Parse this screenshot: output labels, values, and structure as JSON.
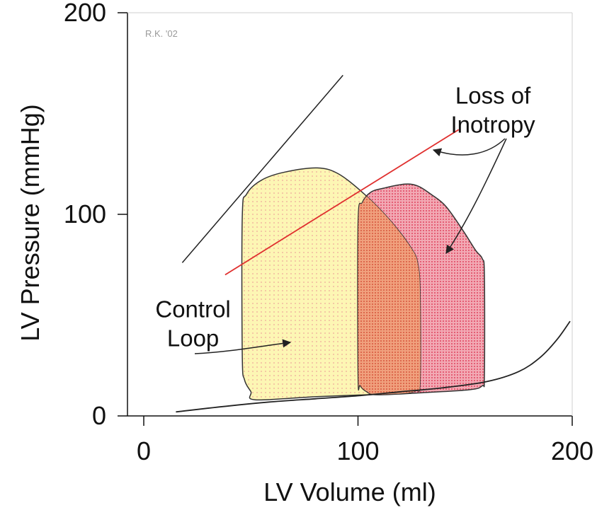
{
  "chart_data": {
    "type": "line",
    "title": "",
    "xlabel": "LV Volume (ml)",
    "ylabel": "LV Pressure (mmHg)",
    "xlim": [
      0,
      200
    ],
    "ylim": [
      0,
      200
    ],
    "x_ticks": [
      0,
      100,
      200
    ],
    "y_ticks": [
      0,
      100,
      200
    ],
    "grid": false,
    "watermark": "R.K. '02",
    "colors": {
      "control_fill": "#fdf6b4",
      "control_dots": "#f2b9a0",
      "inotropy_fill": "#f2a9b4",
      "inotropy_dots": "#e0455f",
      "overlap_fill": "#f0a07d",
      "esprv_control": "#222222",
      "esprv_inotropy": "#e0302f",
      "edpvr": "#222222",
      "outline": "#333333",
      "arrow": "#222222"
    },
    "series": [
      {
        "key": "edpvr",
        "points": [
          [
            15,
            2
          ],
          [
            40,
            5
          ],
          [
            60,
            7
          ],
          [
            80,
            8.5
          ],
          [
            100,
            10
          ],
          [
            120,
            12
          ],
          [
            140,
            14
          ],
          [
            160,
            17
          ],
          [
            175,
            22
          ],
          [
            185,
            29
          ],
          [
            193,
            38
          ],
          [
            199,
            47
          ]
        ]
      },
      {
        "key": "esprv_control",
        "points": [
          [
            18,
            76
          ],
          [
            93,
            169
          ]
        ]
      },
      {
        "key": "esprv_inotropy",
        "points": [
          [
            38,
            70
          ],
          [
            147,
            142
          ]
        ]
      },
      {
        "key": "control_loop",
        "points": [
          [
            52,
            8
          ],
          [
            80,
            9.5
          ],
          [
            104,
            10.5
          ],
          [
            119,
            11
          ],
          [
            127,
            12.5
          ],
          [
            129,
            17
          ],
          [
            129,
            60
          ],
          [
            128,
            75
          ],
          [
            125,
            83
          ],
          [
            115,
            97
          ],
          [
            103,
            110
          ],
          [
            91,
            120
          ],
          [
            81,
            123
          ],
          [
            66,
            121
          ],
          [
            55,
            117
          ],
          [
            48,
            110
          ],
          [
            46,
            99
          ],
          [
            46,
            30
          ],
          [
            47,
            18
          ],
          [
            50,
            12
          ]
        ]
      },
      {
        "key": "inotropy_loop",
        "points": [
          [
            109,
            10.5
          ],
          [
            130,
            11.5
          ],
          [
            152,
            13
          ],
          [
            158,
            15
          ],
          [
            159,
            20
          ],
          [
            159,
            70
          ],
          [
            158,
            78
          ],
          [
            155,
            82
          ],
          [
            149,
            92
          ],
          [
            141,
            104
          ],
          [
            134,
            110
          ],
          [
            128,
            114
          ],
          [
            122,
            115
          ],
          [
            112,
            113
          ],
          [
            106,
            111
          ],
          [
            102,
            106
          ],
          [
            100,
            96
          ],
          [
            100,
            20
          ],
          [
            101,
            15
          ],
          [
            104,
            12
          ]
        ]
      }
    ],
    "annotations": [
      {
        "key": "loss",
        "lines": [
          "Loss of",
          "Inotropy"
        ],
        "at": [
          163,
          155
        ]
      },
      {
        "key": "control",
        "lines": [
          "Control",
          "Loop"
        ],
        "at": [
          23,
          49
        ]
      }
    ]
  }
}
